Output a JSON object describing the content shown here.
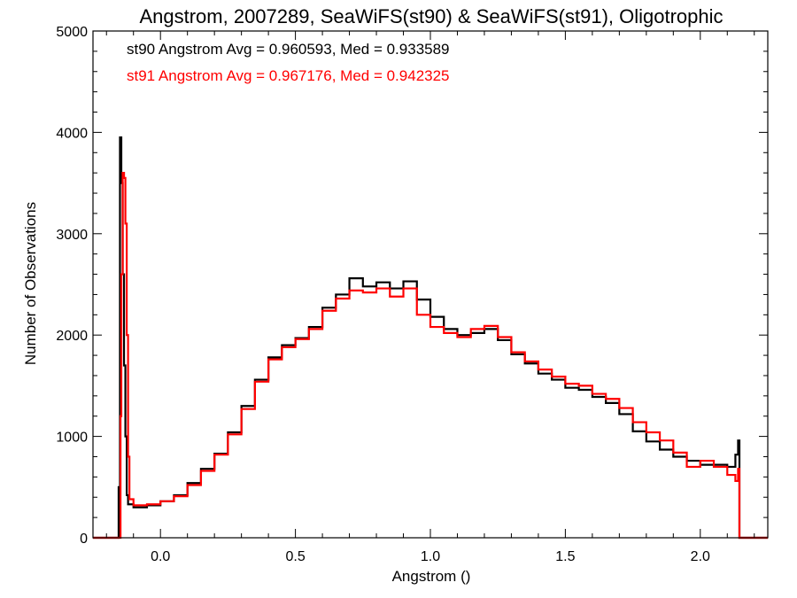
{
  "chart_data": {
    "type": "line",
    "title": "Angstrom, 2007289, SeaWiFS(st90) & SeaWiFS(st91), Oligotrophic",
    "xlabel": "Angstrom ()",
    "ylabel": "Number of Observations",
    "xlim": [
      -0.25,
      2.25
    ],
    "ylim": [
      0,
      5000
    ],
    "xticks": [
      0.0,
      0.5,
      1.0,
      1.5,
      2.0
    ],
    "xtick_labels": [
      "0.0",
      "0.5",
      "1.0",
      "1.5",
      "2.0"
    ],
    "yticks": [
      0,
      1000,
      2000,
      3000,
      4000,
      5000
    ],
    "ytick_labels": [
      "0",
      "1000",
      "2000",
      "3000",
      "4000",
      "5000"
    ],
    "grid": false,
    "annotations": [
      {
        "text": "st90 Angstrom Avg = 0.960593, Med = 0.933589",
        "color": "#000000"
      },
      {
        "text": "st91 Angstrom Avg = 0.967176, Med = 0.942325",
        "color": "#ff0000"
      }
    ],
    "series": [
      {
        "color": "#000000",
        "points": [
          [
            -0.25,
            0
          ],
          [
            -0.16,
            0
          ],
          [
            -0.155,
            500
          ],
          [
            -0.15,
            3950
          ],
          [
            -0.145,
            3500
          ],
          [
            -0.14,
            2600
          ],
          [
            -0.135,
            1700
          ],
          [
            -0.13,
            1000
          ],
          [
            -0.125,
            420
          ],
          [
            -0.12,
            330
          ],
          [
            -0.1,
            300
          ],
          [
            -0.05,
            320
          ],
          [
            0.0,
            360
          ],
          [
            0.05,
            420
          ],
          [
            0.1,
            540
          ],
          [
            0.15,
            680
          ],
          [
            0.2,
            830
          ],
          [
            0.25,
            1040
          ],
          [
            0.3,
            1300
          ],
          [
            0.35,
            1560
          ],
          [
            0.4,
            1780
          ],
          [
            0.45,
            1900
          ],
          [
            0.5,
            1970
          ],
          [
            0.55,
            2080
          ],
          [
            0.6,
            2270
          ],
          [
            0.65,
            2400
          ],
          [
            0.7,
            2560
          ],
          [
            0.75,
            2480
          ],
          [
            0.8,
            2520
          ],
          [
            0.85,
            2460
          ],
          [
            0.9,
            2530
          ],
          [
            0.95,
            2350
          ],
          [
            1.0,
            2180
          ],
          [
            1.05,
            2060
          ],
          [
            1.1,
            2000
          ],
          [
            1.15,
            2020
          ],
          [
            1.2,
            2060
          ],
          [
            1.25,
            1950
          ],
          [
            1.3,
            1810
          ],
          [
            1.35,
            1720
          ],
          [
            1.4,
            1620
          ],
          [
            1.45,
            1560
          ],
          [
            1.5,
            1480
          ],
          [
            1.55,
            1460
          ],
          [
            1.6,
            1390
          ],
          [
            1.65,
            1330
          ],
          [
            1.7,
            1220
          ],
          [
            1.75,
            1050
          ],
          [
            1.8,
            950
          ],
          [
            1.85,
            870
          ],
          [
            1.9,
            800
          ],
          [
            1.95,
            760
          ],
          [
            2.0,
            720
          ],
          [
            2.05,
            720
          ],
          [
            2.1,
            700
          ],
          [
            2.13,
            820
          ],
          [
            2.14,
            960
          ],
          [
            2.145,
            0
          ],
          [
            2.25,
            0
          ]
        ]
      },
      {
        "color": "#ff0000",
        "points": [
          [
            -0.25,
            0
          ],
          [
            -0.15,
            0
          ],
          [
            -0.148,
            1200
          ],
          [
            -0.145,
            2600
          ],
          [
            -0.14,
            3600
          ],
          [
            -0.135,
            3550
          ],
          [
            -0.13,
            3100
          ],
          [
            -0.125,
            2000
          ],
          [
            -0.12,
            800
          ],
          [
            -0.115,
            380
          ],
          [
            -0.1,
            320
          ],
          [
            -0.05,
            330
          ],
          [
            0.0,
            360
          ],
          [
            0.05,
            410
          ],
          [
            0.1,
            520
          ],
          [
            0.15,
            660
          ],
          [
            0.2,
            820
          ],
          [
            0.25,
            1020
          ],
          [
            0.3,
            1270
          ],
          [
            0.35,
            1540
          ],
          [
            0.4,
            1760
          ],
          [
            0.45,
            1880
          ],
          [
            0.5,
            1960
          ],
          [
            0.55,
            2060
          ],
          [
            0.6,
            2240
          ],
          [
            0.65,
            2360
          ],
          [
            0.7,
            2440
          ],
          [
            0.75,
            2420
          ],
          [
            0.8,
            2460
          ],
          [
            0.85,
            2380
          ],
          [
            0.9,
            2460
          ],
          [
            0.95,
            2200
          ],
          [
            1.0,
            2080
          ],
          [
            1.05,
            2020
          ],
          [
            1.1,
            1980
          ],
          [
            1.15,
            2060
          ],
          [
            1.2,
            2090
          ],
          [
            1.25,
            1980
          ],
          [
            1.3,
            1830
          ],
          [
            1.35,
            1740
          ],
          [
            1.4,
            1660
          ],
          [
            1.45,
            1590
          ],
          [
            1.5,
            1520
          ],
          [
            1.55,
            1500
          ],
          [
            1.6,
            1420
          ],
          [
            1.65,
            1370
          ],
          [
            1.7,
            1280
          ],
          [
            1.75,
            1140
          ],
          [
            1.8,
            1040
          ],
          [
            1.85,
            960
          ],
          [
            1.9,
            840
          ],
          [
            1.95,
            700
          ],
          [
            2.0,
            760
          ],
          [
            2.05,
            700
          ],
          [
            2.1,
            620
          ],
          [
            2.13,
            560
          ],
          [
            2.14,
            680
          ],
          [
            2.145,
            0
          ],
          [
            2.25,
            0
          ]
        ]
      }
    ]
  }
}
